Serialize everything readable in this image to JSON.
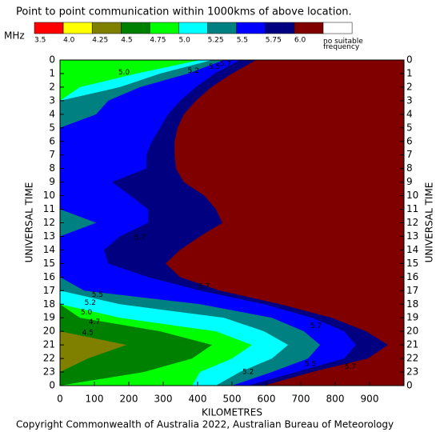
{
  "chart_data": {
    "type": "contour",
    "title": "Point to point communication within 1000kms of above location.",
    "legend_title": "MHz",
    "xlabel": "KILOMETRES",
    "ylabel": "UNIVERSAL TIME",
    "footer": "Copyright Commonwealth of Australia 2022, Australian Bureau of Meteorology",
    "xlim": [
      0,
      1000
    ],
    "xticks": [
      0,
      100,
      200,
      300,
      400,
      500,
      600,
      700,
      800,
      900
    ],
    "ylim": [
      0,
      24
    ],
    "yticks": [
      0,
      1,
      2,
      3,
      4,
      5,
      6,
      7,
      8,
      9,
      10,
      11,
      12,
      13,
      14,
      15,
      16,
      17,
      18,
      19,
      20,
      21,
      22,
      23,
      {
        "value": 24,
        "label": "0"
      }
    ],
    "hours": [
      0,
      1,
      2,
      3,
      4,
      5,
      6,
      7,
      8,
      9,
      10,
      11,
      12,
      13,
      14,
      15,
      16,
      17,
      18,
      19,
      20,
      21,
      22,
      23,
      24
    ],
    "bands": [
      {
        "label": "6.0",
        "color": "#800000",
        "reach_km": [
          1000,
          1000,
          1000,
          1000,
          1000,
          1000,
          1000,
          1000,
          1000,
          1000,
          1000,
          1000,
          1000,
          1000,
          1000,
          1000,
          1000,
          1000,
          1000,
          1000,
          1000,
          1000,
          1000,
          1000,
          1000
        ]
      },
      {
        "label": "5.75",
        "color": "#000080",
        "reach_km": [
          570,
          500,
          440,
          395,
          360,
          342,
          333,
          333,
          337,
          360,
          420,
          453,
          472,
          407,
          349,
          307,
          349,
          465,
          640,
          790,
          890,
          953,
          895,
          733,
          593
        ]
      },
      {
        "label": "5.5",
        "color": "#0000ff",
        "reach_km": [
          523,
          449,
          395,
          349,
          314,
          291,
          267,
          251,
          251,
          151,
          205,
          256,
          256,
          174,
          128,
          140,
          256,
          407,
          593,
          733,
          826,
          860,
          826,
          686,
          547
        ]
      },
      {
        "label": "5.25",
        "color": "#008080",
        "reach_km": [
          477,
          372,
          233,
          140,
          105,
          0,
          0,
          0,
          0,
          0,
          0,
          0,
          105,
          0,
          0,
          0,
          0,
          70,
          407,
          616,
          709,
          756,
          721,
          616,
          500
        ]
      },
      {
        "label": "5.0",
        "color": "#00ffff",
        "reach_km": [
          442,
          291,
          174,
          0,
          0,
          0,
          0,
          0,
          0,
          0,
          0,
          0,
          0,
          0,
          0,
          0,
          0,
          0,
          174,
          477,
          593,
          663,
          616,
          523,
          453
        ]
      },
      {
        "label": "4.75",
        "color": "#00ff00",
        "reach_km": [
          407,
          221,
          58,
          0,
          0,
          0,
          0,
          0,
          0,
          0,
          0,
          0,
          0,
          0,
          0,
          0,
          0,
          0,
          0,
          174,
          453,
          558,
          500,
          407,
          384
        ]
      },
      {
        "label": "4.5",
        "color": "#008000",
        "reach_km": [
          0,
          0,
          0,
          0,
          0,
          0,
          0,
          0,
          0,
          0,
          0,
          0,
          0,
          0,
          0,
          0,
          0,
          0,
          0,
          58,
          291,
          442,
          384,
          244,
          0
        ]
      },
      {
        "label": "4.25",
        "color": "#808000",
        "reach_km": [
          0,
          0,
          0,
          0,
          0,
          0,
          0,
          0,
          0,
          0,
          0,
          0,
          0,
          0,
          0,
          0,
          0,
          0,
          0,
          0,
          0,
          193,
          81,
          0,
          0
        ]
      },
      {
        "label": "4.0",
        "color": "#ffff00",
        "reach_km": [
          0,
          0,
          0,
          0,
          0,
          0,
          0,
          0,
          0,
          0,
          0,
          0,
          0,
          0,
          0,
          0,
          0,
          0,
          0,
          0,
          0,
          0,
          0,
          0,
          0
        ]
      },
      {
        "label": "3.5",
        "color": "#ff0000",
        "reach_km": [
          0,
          0,
          0,
          0,
          0,
          0,
          0,
          0,
          0,
          0,
          0,
          0,
          0,
          0,
          0,
          0,
          0,
          0,
          0,
          0,
          0,
          0,
          0,
          0,
          0
        ]
      }
    ],
    "no_data": {
      "label": "no suitable frequency",
      "color": "#ffffff"
    },
    "contour_labels": [
      {
        "text": "5.0",
        "km": 186,
        "hour": 0.9
      },
      {
        "text": "5.2",
        "km": 388,
        "hour": 0.8
      },
      {
        "text": "5.5",
        "km": 449,
        "hour": 0.5
      },
      {
        "text": "5.7",
        "km": 481,
        "hour": 0.3
      },
      {
        "text": "5.7",
        "km": 233,
        "hour": 13.1
      },
      {
        "text": "5.7",
        "km": 419,
        "hour": 16.7
      },
      {
        "text": "5.5",
        "km": 109,
        "hour": 17.3
      },
      {
        "text": "5.2",
        "km": 88,
        "hour": 17.9
      },
      {
        "text": "5.0",
        "km": 77,
        "hour": 18.6
      },
      {
        "text": "4.7",
        "km": 100,
        "hour": 19.3
      },
      {
        "text": "4.5",
        "km": 81,
        "hour": 20.1
      },
      {
        "text": "5.7",
        "km": 744,
        "hour": 19.6
      },
      {
        "text": "5.2",
        "km": 547,
        "hour": 23
      },
      {
        "text": "5.5",
        "km": 728,
        "hour": 22.4
      },
      {
        "text": "5.7",
        "km": 844,
        "hour": 22.6
      }
    ]
  }
}
